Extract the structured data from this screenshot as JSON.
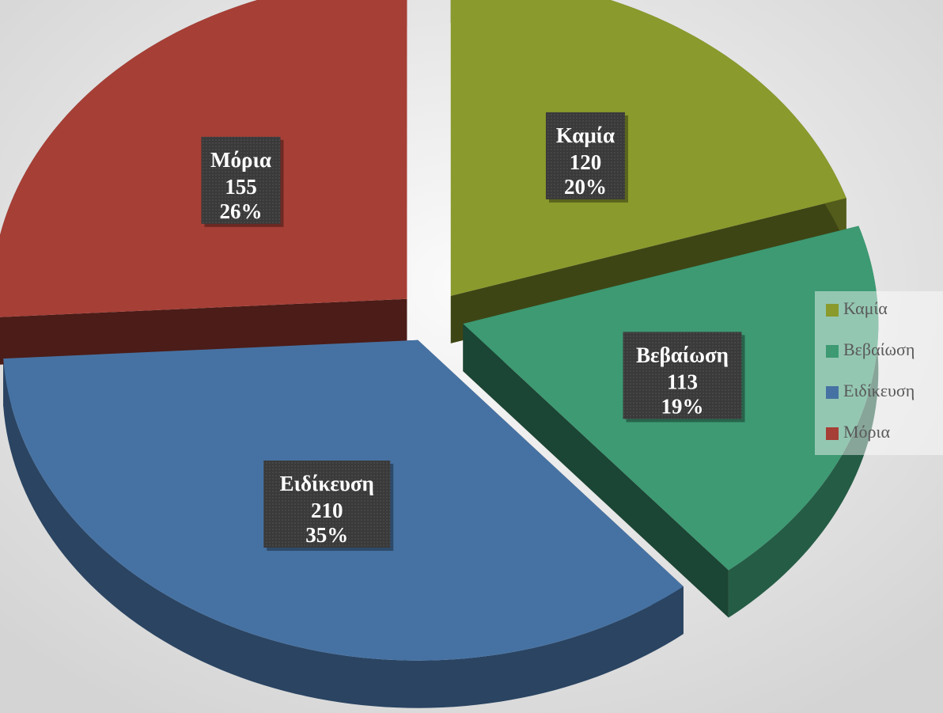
{
  "chart_data": {
    "type": "pie",
    "categories": [
      "Καμία",
      "Βεβαίωση",
      "Ειδίκευση",
      "Μόρια"
    ],
    "values": [
      120,
      113,
      210,
      155
    ],
    "percent_labels": [
      "20%",
      "19%",
      "35%",
      "26%"
    ],
    "colors": [
      "#8a9a2c",
      "#3d9a73",
      "#4672a3",
      "#a63f36"
    ],
    "legend": "right"
  }
}
